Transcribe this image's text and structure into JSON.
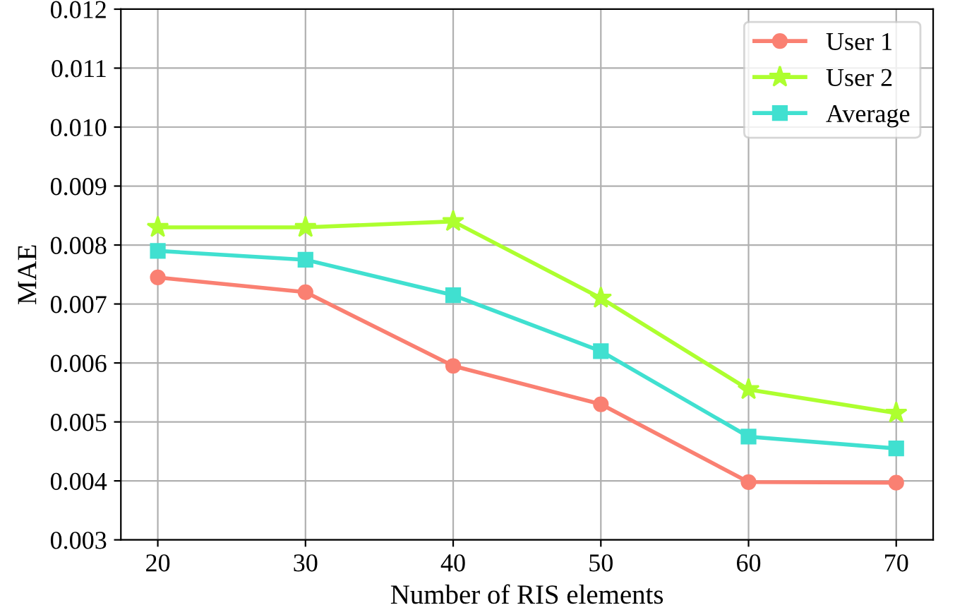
{
  "chart_data": {
    "type": "line",
    "xlabel": "Number of RIS elements",
    "ylabel": "MAE",
    "x": [
      20,
      30,
      40,
      50,
      60,
      70
    ],
    "series": [
      {
        "name": "User 1",
        "color": "#fa8072",
        "marker": "circle",
        "values": [
          0.00745,
          0.0072,
          0.00595,
          0.0053,
          0.00398,
          0.00397
        ]
      },
      {
        "name": "User 2",
        "color": "#adff2f",
        "marker": "star",
        "values": [
          0.0083,
          0.0083,
          0.0084,
          0.0071,
          0.00555,
          0.00515
        ]
      },
      {
        "name": "Average",
        "color": "#40e0d0",
        "marker": "square",
        "values": [
          0.0079,
          0.00775,
          0.00715,
          0.0062,
          0.00475,
          0.00455
        ]
      }
    ],
    "xlim": [
      17.5,
      72.5
    ],
    "xticks": [
      20,
      30,
      40,
      50,
      60,
      70
    ],
    "ylim": [
      0.003,
      0.012
    ],
    "yticks": [
      {
        "value": 0.003,
        "label": "0.003"
      },
      {
        "value": 0.004,
        "label": "0.004"
      },
      {
        "value": 0.005,
        "label": "0.005"
      },
      {
        "value": 0.006,
        "label": "0.006"
      },
      {
        "value": 0.007,
        "label": "0.007"
      },
      {
        "value": 0.008,
        "label": "0.008"
      },
      {
        "value": 0.009,
        "label": "0.009"
      },
      {
        "value": 0.01,
        "label": "0.010"
      },
      {
        "value": 0.011,
        "label": "0.011"
      },
      {
        "value": 0.012,
        "label": "0.012"
      }
    ],
    "grid": true,
    "legend": "top right",
    "line_style": "solid"
  }
}
